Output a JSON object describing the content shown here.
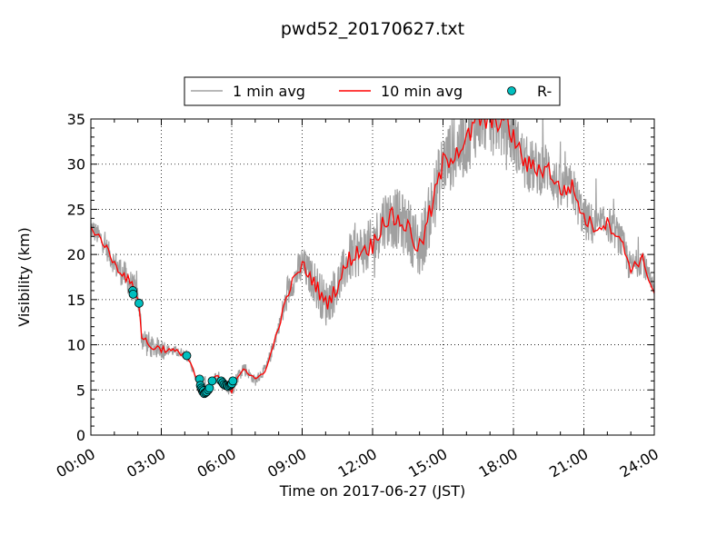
{
  "chart_data": {
    "type": "line",
    "title": "pwd52_20170627.txt",
    "xlabel": "Time on 2017-06-27 (JST)",
    "ylabel": "Visibility (km)",
    "xlim": [
      "2017-06-27 00:00",
      "2017-06-28 00:00"
    ],
    "ylim": [
      0,
      35
    ],
    "grid": true,
    "legend_position": "top-center, above plot",
    "x_ticks": [
      "00:00",
      "03:00",
      "06:00",
      "09:00",
      "12:00",
      "15:00",
      "18:00",
      "21:00",
      "24:00"
    ],
    "y_ticks": [
      "0",
      "5",
      "10",
      "15",
      "20",
      "25",
      "30",
      "35"
    ],
    "legend": [
      "1 min avg",
      "10 min avg",
      "R-"
    ],
    "series": [
      {
        "name": "1 min avg",
        "color": "#a0a0a0",
        "noise_km": [
          1.2,
          1.3,
          1.6,
          1.6,
          1.2,
          0.6,
          0.4,
          0.5,
          0.8,
          0.8,
          0.6,
          0.8,
          1.6,
          2.2,
          2.6,
          2.6,
          2.8,
          3.0,
          3.4,
          3.4,
          3.6,
          3.8,
          4.0,
          3.8,
          3.8,
          3.6,
          3.2,
          3.0,
          2.8,
          2.6,
          2.4,
          2.0,
          2.0,
          1.6,
          1.4
        ],
        "note_ref": "values follow the 10 min avg series, with the noise_km spread around it"
      },
      {
        "name": "10 min avg",
        "color": "#ff0000",
        "time": [
          "00:00",
          "00:30",
          "01:00",
          "01:30",
          "02:00",
          "02:10",
          "02:30",
          "03:00",
          "03:30",
          "04:00",
          "04:15",
          "04:30",
          "04:45",
          "05:00",
          "05:15",
          "05:30",
          "05:45",
          "06:00",
          "06:15",
          "06:30",
          "07:00",
          "07:30",
          "08:00",
          "08:30",
          "09:00",
          "09:30",
          "10:00",
          "10:30",
          "11:00",
          "11:30",
          "12:00",
          "12:30",
          "13:00",
          "13:30",
          "14:00",
          "14:30",
          "15:00",
          "15:30",
          "16:00",
          "16:30",
          "17:00",
          "17:30",
          "18:00",
          "18:30",
          "19:00",
          "19:30",
          "20:00",
          "20:30",
          "21:00",
          "21:30",
          "22:00",
          "22:30",
          "23:00",
          "23:30",
          "24:00"
        ],
        "values": [
          23.0,
          21.5,
          19.0,
          17.5,
          15.5,
          11.0,
          9.8,
          9.6,
          9.3,
          9.0,
          8.0,
          6.0,
          5.2,
          5.0,
          6.5,
          6.2,
          5.5,
          5.0,
          6.5,
          7.5,
          6.0,
          7.5,
          12.0,
          16.5,
          18.8,
          17.0,
          14.5,
          16.5,
          19.5,
          20.5,
          21.0,
          24.0,
          24.0,
          23.0,
          20.5,
          25.0,
          30.0,
          31.5,
          32.5,
          35.0,
          34.5,
          35.0,
          33.0,
          30.0,
          29.5,
          29.5,
          27.0,
          27.5,
          24.0,
          23.0,
          23.5,
          22.0,
          18.5,
          19.5,
          15.5
        ]
      },
      {
        "name": "R-",
        "type": "scatter",
        "color": "#00bfbf",
        "time": [
          "01:47",
          "01:48",
          "02:03",
          "04:05",
          "04:38",
          "04:40",
          "04:42",
          "04:44",
          "04:46",
          "04:48",
          "04:50",
          "04:53",
          "04:56",
          "05:00",
          "05:03",
          "05:10",
          "05:33",
          "05:37",
          "05:40",
          "05:44",
          "05:48",
          "05:51",
          "05:55",
          "05:58",
          "06:00",
          "06:03"
        ],
        "values": [
          16.0,
          15.6,
          14.6,
          8.8,
          6.2,
          5.5,
          5.2,
          5.0,
          4.8,
          4.9,
          4.6,
          4.7,
          4.8,
          5.0,
          5.2,
          6.0,
          6.0,
          5.8,
          5.6,
          5.5,
          5.5,
          5.4,
          5.5,
          5.6,
          5.7,
          6.0
        ]
      }
    ]
  }
}
